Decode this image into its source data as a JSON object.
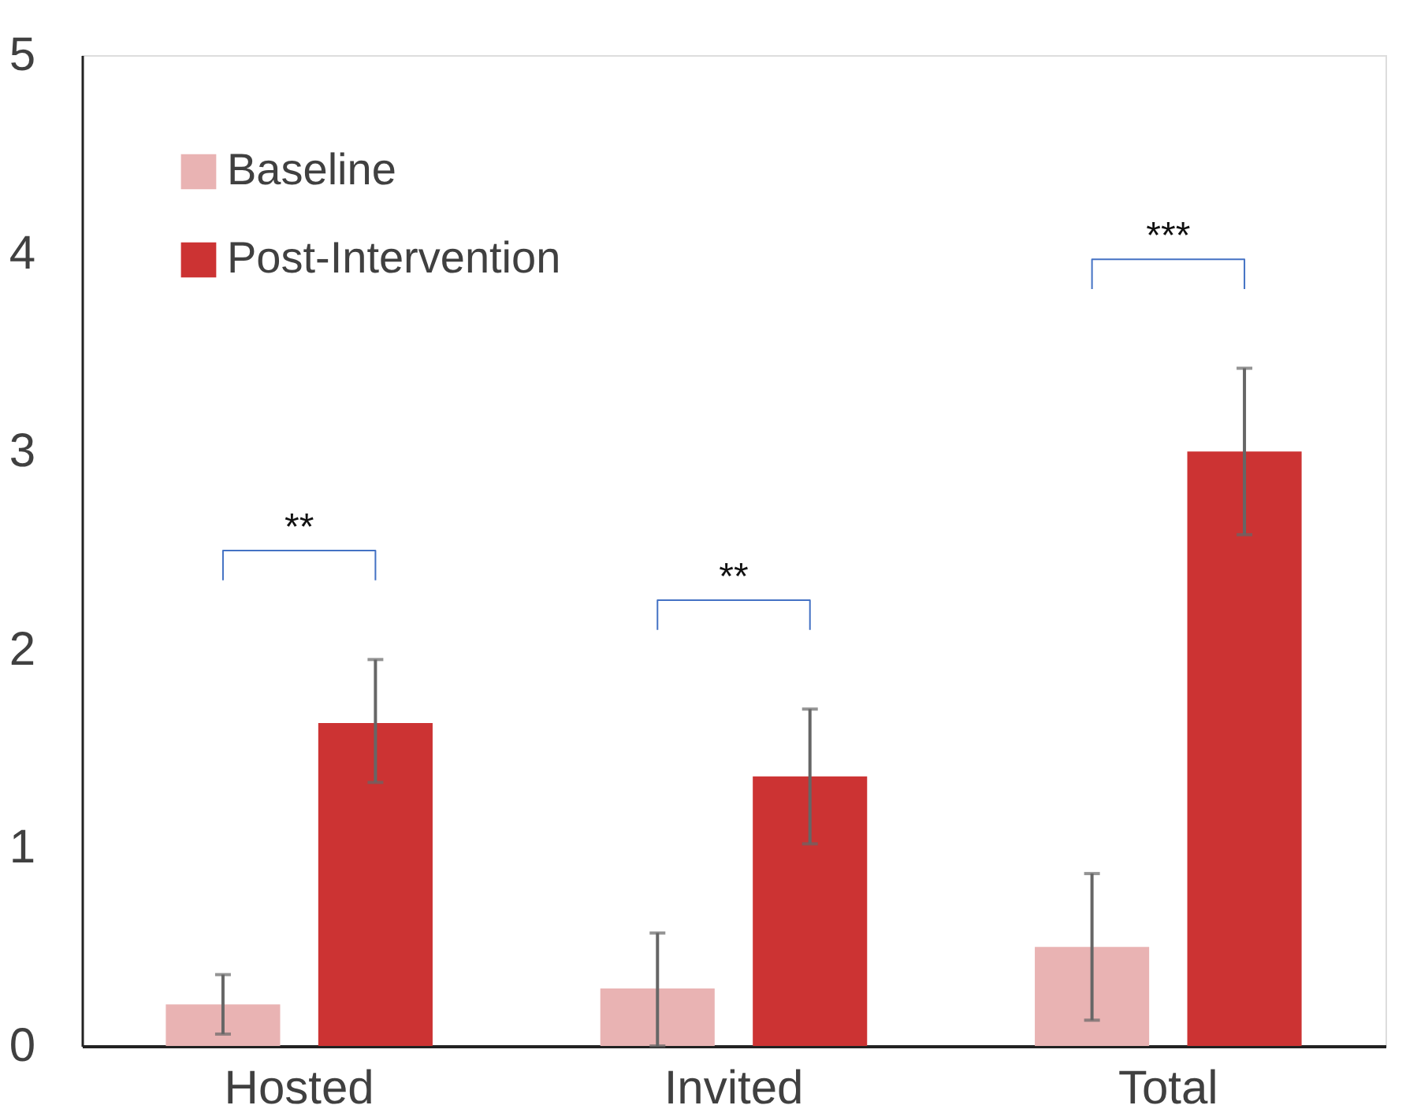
{
  "chart_data": {
    "type": "bar",
    "categories": [
      "Hosted",
      "Invited",
      "Total"
    ],
    "series": [
      {
        "name": "Baseline",
        "color": "#e9b3b3",
        "values": [
          0.21,
          0.29,
          0.5
        ],
        "errors": [
          [
            0.06,
            0.36
          ],
          [
            0.0,
            0.57
          ],
          [
            0.13,
            0.87
          ]
        ]
      },
      {
        "name": "Post-Intervention",
        "color": "#cc3333",
        "values": [
          1.63,
          1.36,
          3.0
        ],
        "errors": [
          [
            1.33,
            1.95
          ],
          [
            1.02,
            1.7
          ],
          [
            2.58,
            3.42
          ]
        ]
      }
    ],
    "ylim": [
      0,
      5
    ],
    "yticks": [
      0,
      1,
      2,
      3,
      4,
      5
    ],
    "grid": false,
    "legend": "top left",
    "annotations": [
      "**",
      "**",
      "***"
    ]
  }
}
